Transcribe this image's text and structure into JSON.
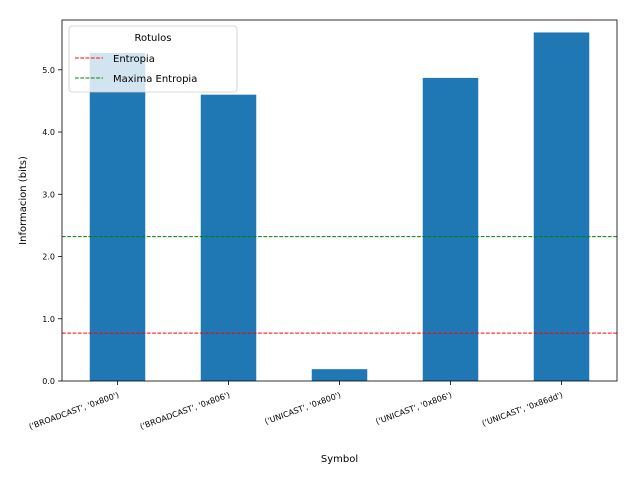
{
  "chart_data": {
    "type": "bar",
    "categories": [
      "('BROADCAST', '0x800')",
      "('BROADCAST', '0x806')",
      "('UNICAST', '0x800')",
      "('UNICAST', '0x806')",
      "('UNICAST', '0x86dd')"
    ],
    "values": [
      5.27,
      4.6,
      0.19,
      4.87,
      5.6
    ],
    "bar_color": "#1f77b4",
    "xlabel": "Symbol",
    "ylabel": "Informacion (bits)",
    "ylim": [
      0,
      5.8
    ],
    "yticks": [
      0.0,
      1.0,
      2.0,
      3.0,
      4.0,
      5.0
    ],
    "ytick_labels": [
      "0.0",
      "1.0",
      "2.0",
      "3.0",
      "4.0",
      "5.0"
    ],
    "grid": false,
    "reference_lines": [
      {
        "name": "Entropia",
        "y": 0.77,
        "color": "#ff0000",
        "style": "dashed"
      },
      {
        "name": "Maxima Entropia",
        "y": 2.32,
        "color": "#008000",
        "style": "dashed"
      }
    ],
    "legend": {
      "title": "Rotulos",
      "placement": "top-left",
      "entries": [
        "Entropia",
        "Maxima Entropia"
      ]
    }
  }
}
